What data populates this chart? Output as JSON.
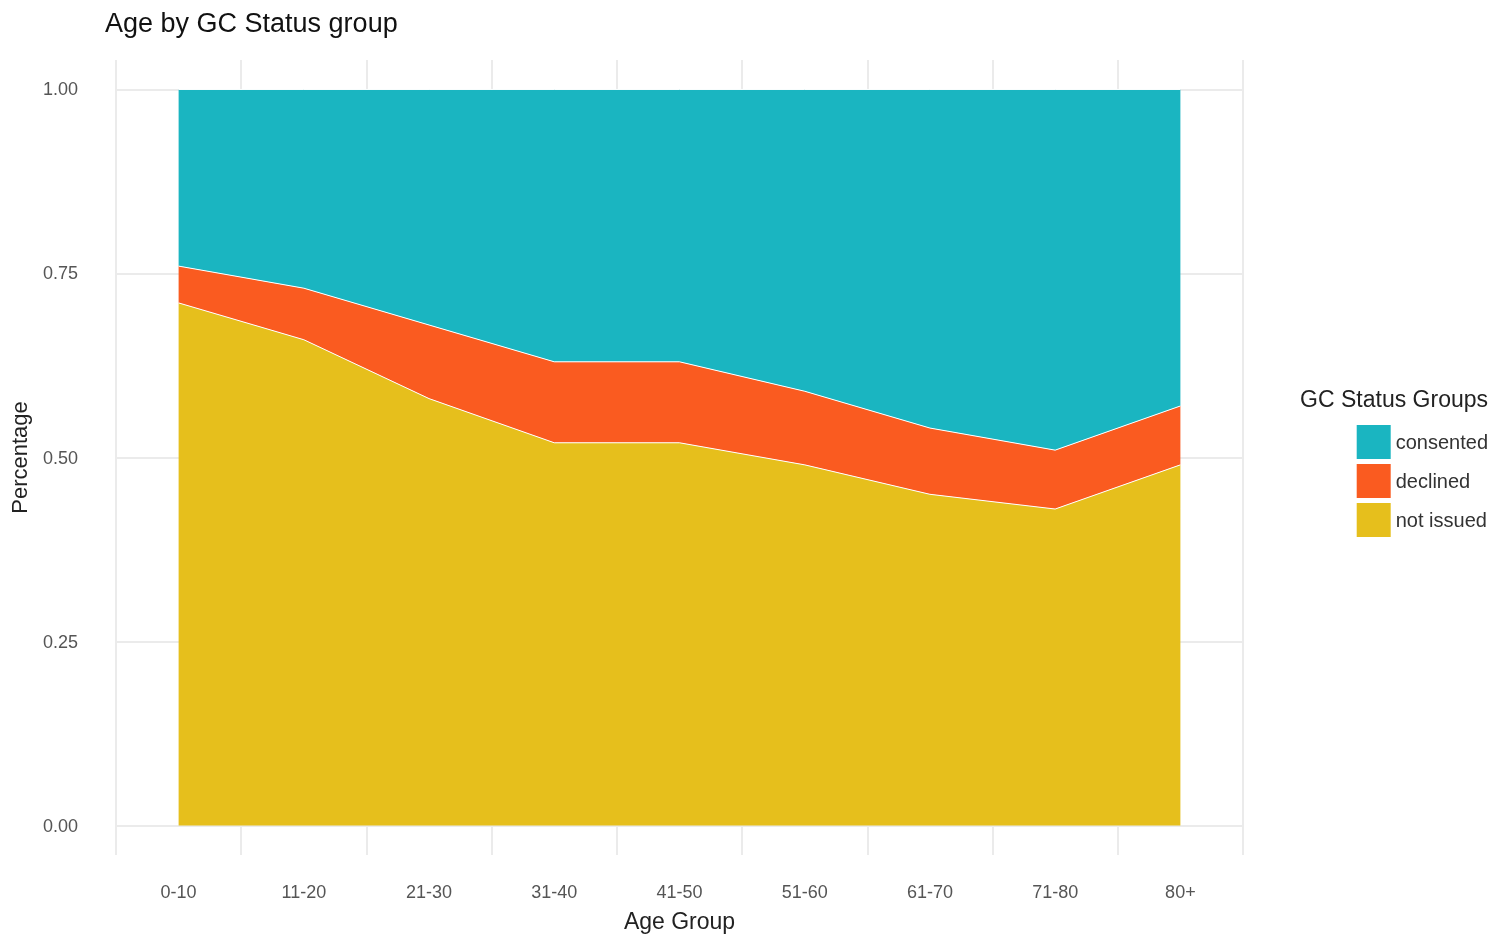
{
  "chart_data": {
    "type": "area",
    "stacked": true,
    "title": "Age by GC Status group",
    "xlabel": "Age Group",
    "ylabel": "Percentage",
    "legend_title": "GC Status Groups",
    "legend": "right",
    "grid": true,
    "categories": [
      "0-10",
      "11-20",
      "21-30",
      "31-40",
      "41-50",
      "51-60",
      "61-70",
      "71-80",
      "80+"
    ],
    "ylim": [
      -0.04,
      1.04
    ],
    "yticks": [
      {
        "value": 0,
        "label": "0.00"
      },
      {
        "value": 0.25,
        "label": "0.25"
      },
      {
        "value": 0.5,
        "label": "0.50"
      },
      {
        "value": 0.75,
        "label": "0.75"
      },
      {
        "value": 1,
        "label": "1.00"
      }
    ],
    "series": [
      {
        "name": "not issued",
        "color": "#e6bf1c",
        "values": [
          0.71,
          0.66,
          0.58,
          0.52,
          0.52,
          0.49,
          0.45,
          0.43,
          0.49
        ]
      },
      {
        "name": "declined",
        "color": "#fa5b20",
        "values": [
          0.05,
          0.07,
          0.1,
          0.11,
          0.11,
          0.1,
          0.09,
          0.08,
          0.08
        ]
      },
      {
        "name": "consented",
        "color": "#1ab5c1",
        "values": [
          0.24,
          0.27,
          0.32,
          0.37,
          0.37,
          0.41,
          0.46,
          0.49,
          0.43
        ]
      }
    ]
  }
}
